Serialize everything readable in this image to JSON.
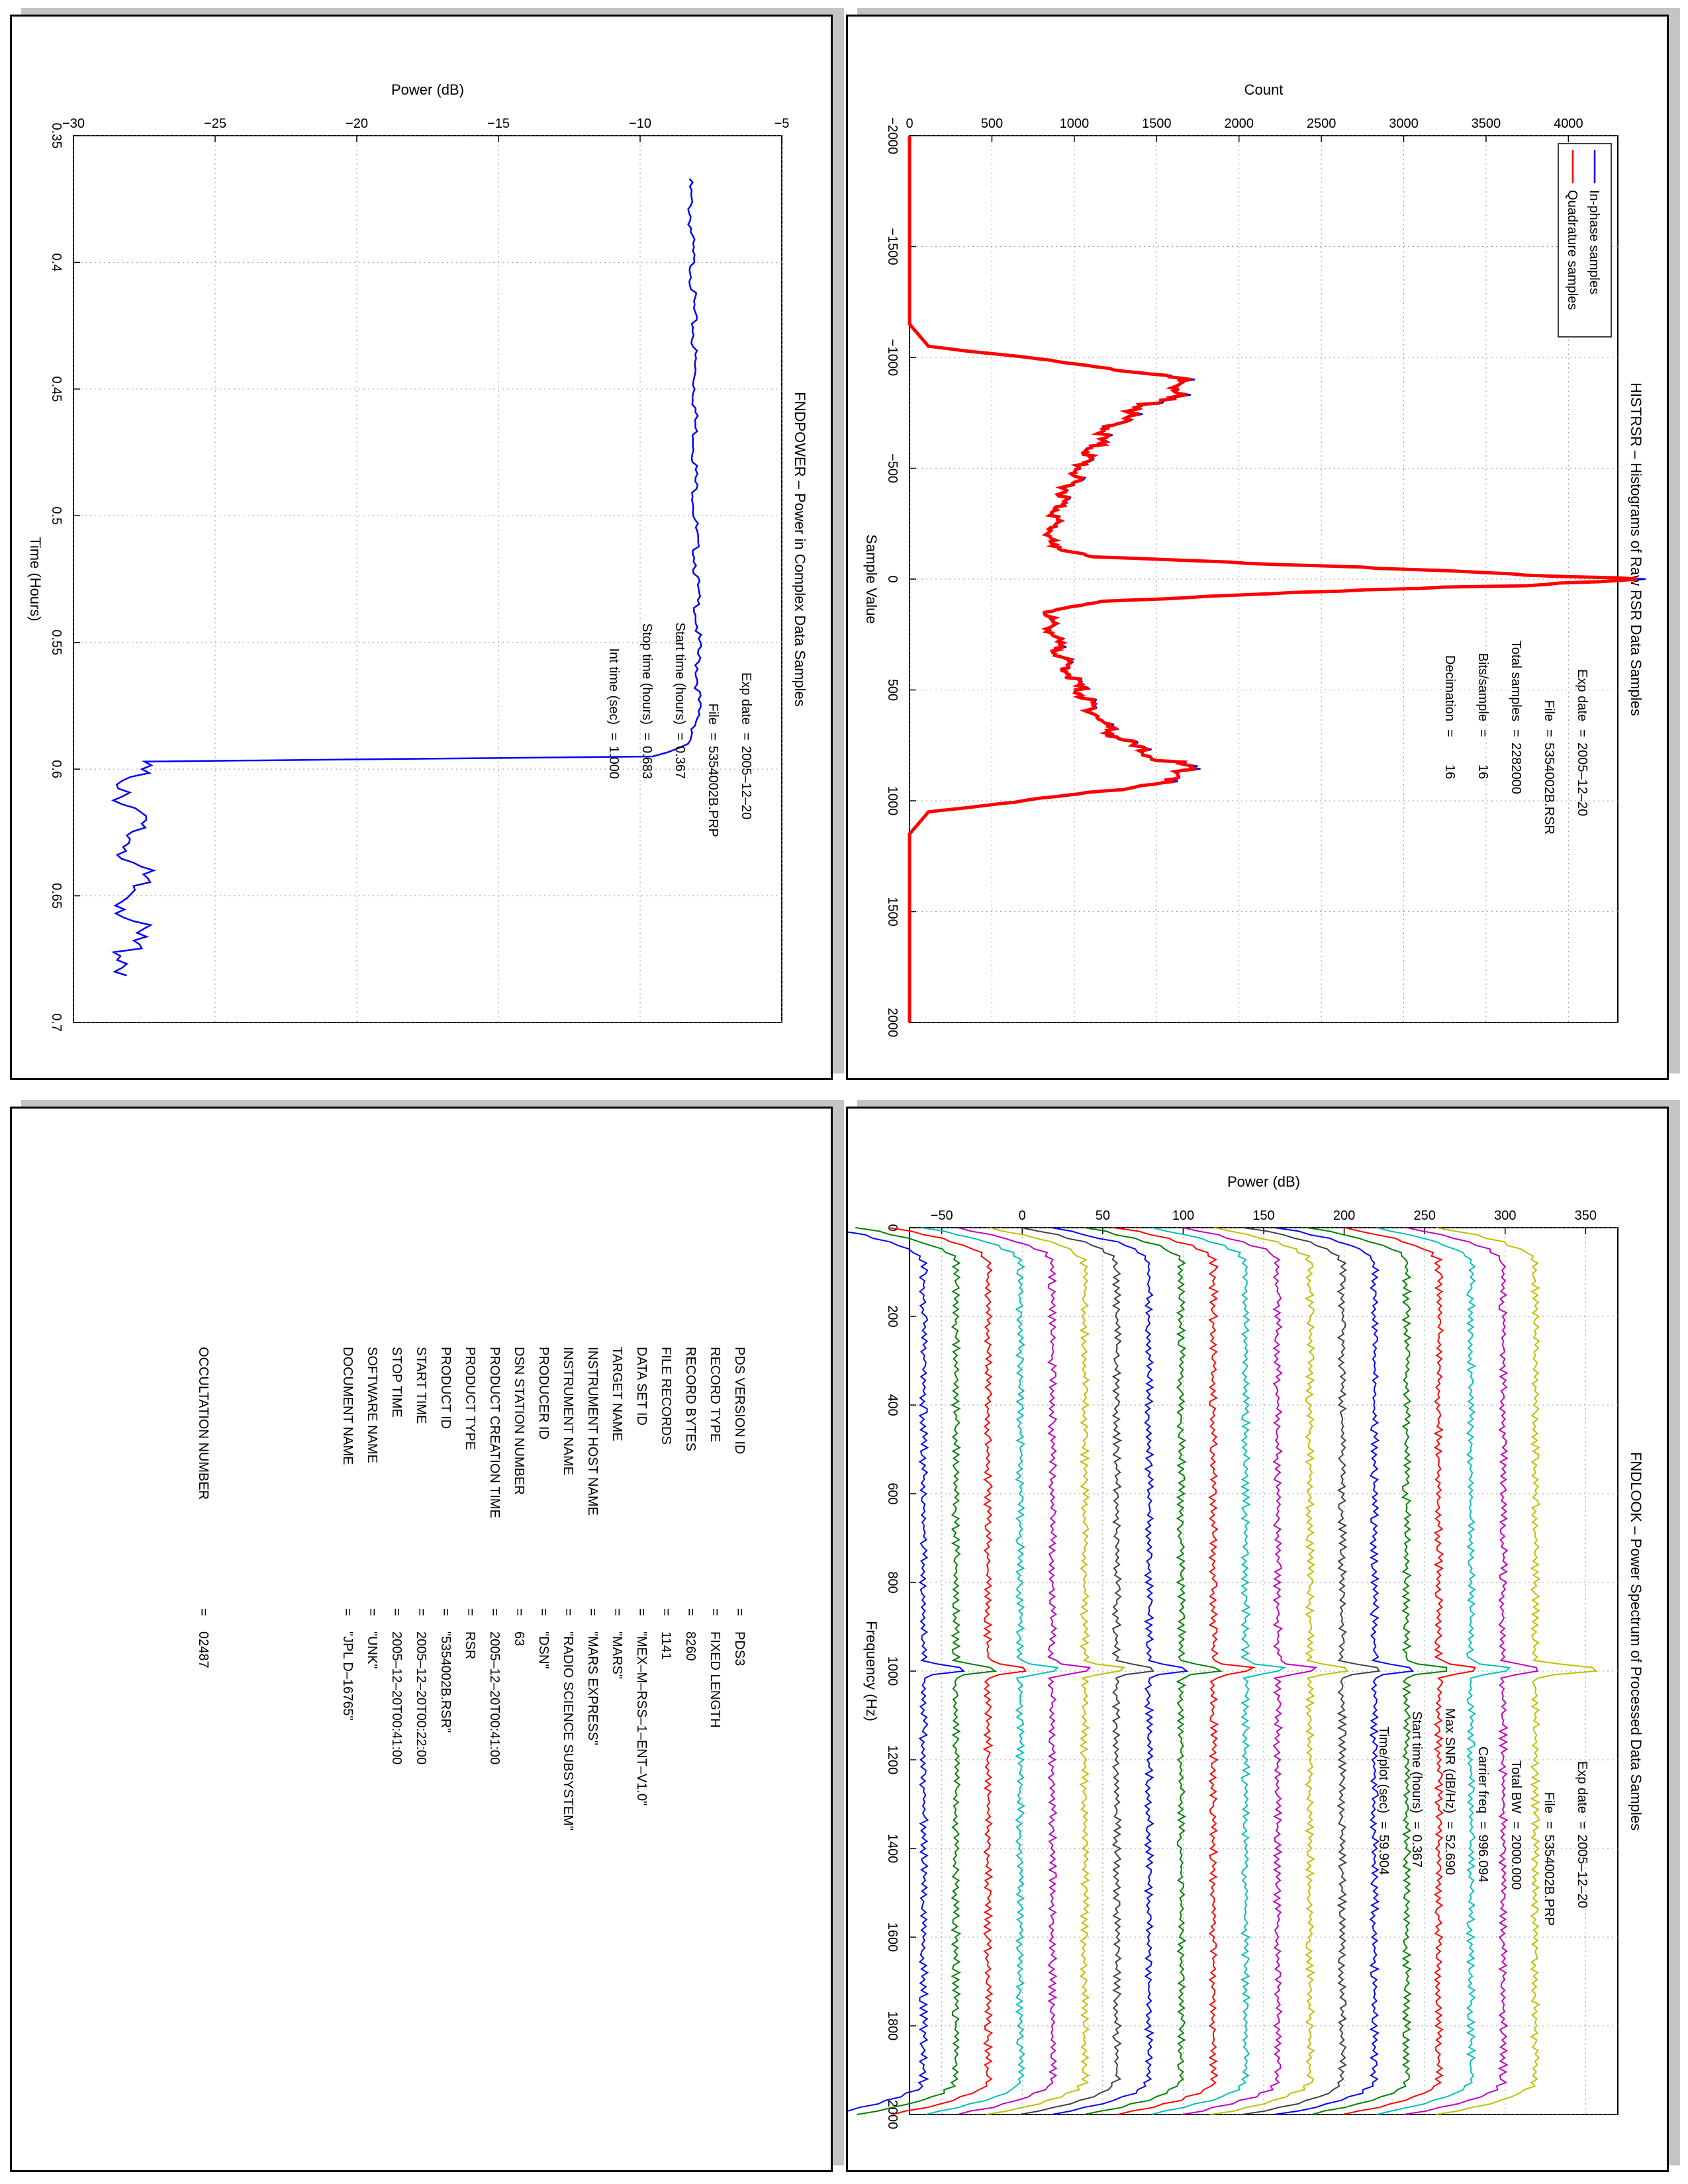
{
  "panels": {
    "histrsr": {
      "title": "HISTRSR – Histograms of Raw RSR Data Samples",
      "xlabel": "Sample Value",
      "ylabel": "Count",
      "legend": [
        "In-phase samples",
        "Quadrature samples"
      ],
      "info": [
        {
          "k": "Exp date",
          "v": "2005–12–20"
        },
        {
          "k": "File",
          "v": "5354002B.RSR"
        },
        {
          "k": "Total samples",
          "v": "2282000"
        },
        {
          "k": "Bits/sample",
          "v": "16"
        },
        {
          "k": "Decimation",
          "v": "16"
        }
      ]
    },
    "fndpower": {
      "title": "FNDPOWER – Power in Complex Data Samples",
      "xlabel": "Time (Hours)",
      "ylabel": "Power (dB)",
      "info": [
        {
          "k": "Exp date",
          "v": "2005–12–20"
        },
        {
          "k": "File",
          "v": "5354002B.PRP"
        },
        {
          "k": "Start time (hours)",
          "v": "0.367"
        },
        {
          "k": "Stop time (hours)",
          "v": "0.683"
        },
        {
          "k": "Int time (sec)",
          "v": "1.000"
        }
      ]
    },
    "fndlook": {
      "title": "FNDLOOK – Power Spectrum of Processed Data Samples",
      "xlabel": "Frequency (Hz)",
      "ylabel": "Power (dB)",
      "info": [
        {
          "k": "Exp date",
          "v": "2005–12–20"
        },
        {
          "k": "File",
          "v": "5354002B.PRP"
        },
        {
          "k": "Total BW",
          "v": "2000.000"
        },
        {
          "k": "Carrier freq",
          "v": "996.094"
        },
        {
          "k": "Max SNR (dB/Hz)",
          "v": "52.690"
        },
        {
          "k": "Start time (hours)",
          "v": "0.367"
        },
        {
          "k": "Time/plot (sec)",
          "v": "59.904"
        }
      ]
    },
    "label": {
      "rows": [
        {
          "k": "PDS VERSION ID",
          "v": "PDS3"
        },
        {
          "k": "RECORD TYPE",
          "v": "FIXED LENGTH"
        },
        {
          "k": "RECORD BYTES",
          "v": "8260"
        },
        {
          "k": "FILE RECORDS",
          "v": "1141"
        },
        {
          "k": "DATA SET ID",
          "v": "\"MEX–M–RSS–1–ENT–V1.0\""
        },
        {
          "k": "TARGET NAME",
          "v": "\"MARS\""
        },
        {
          "k": "INSTRUMENT HOST NAME",
          "v": "\"MARS EXPRESS\""
        },
        {
          "k": "INSTRUMENT NAME",
          "v": "\"RADIO SCIENCE SUBSYSTEM\""
        },
        {
          "k": "PRODUCER ID",
          "v": "\"DSN\""
        },
        {
          "k": "DSN STATION NUMBER",
          "v": "63"
        },
        {
          "k": "PRODUCT CREATION TIME",
          "v": "2005–12–20T00:41:00"
        },
        {
          "k": "PRODUCT TYPE",
          "v": "RSR"
        },
        {
          "k": "PRODUCT ID",
          "v": "\"5354002B.RSR\""
        },
        {
          "k": "START TIME",
          "v": "2005–12–20T00:22:00"
        },
        {
          "k": "STOP TIME",
          "v": "2005–12–20T00:41:00"
        },
        {
          "k": "SOFTWARE NAME",
          "v": "\"UNK\""
        },
        {
          "k": "DOCUMENT NAME",
          "v": "\"JPL D–16765\""
        }
      ],
      "occ_key": "OCCULTATION NUMBER",
      "occ_val": "02487"
    }
  },
  "chart_data": [
    {
      "type": "line",
      "title": "HISTRSR – Histograms of Raw RSR Data Samples",
      "xlabel": "Sample Value",
      "ylabel": "Count",
      "xlim": [
        -2000,
        2000
      ],
      "ylim": [
        0,
        4300
      ],
      "xticks": [
        -2000,
        -1500,
        -1000,
        -500,
        0,
        500,
        1000,
        1500,
        2000
      ],
      "yticks": [
        0,
        500,
        1000,
        1500,
        2000,
        2500,
        3000,
        3500,
        4000
      ],
      "grid": true,
      "legend_position": "top-left",
      "series": [
        {
          "name": "In-phase samples",
          "color": "#0000ff",
          "x": [
            -2000,
            -1150,
            -1050,
            -1000,
            -950,
            -900,
            -850,
            -800,
            -750,
            -700,
            -650,
            -600,
            -550,
            -500,
            -450,
            -400,
            -350,
            -300,
            -250,
            -200,
            -150,
            -100,
            -60,
            -30,
            0,
            30,
            60,
            100,
            150,
            200,
            250,
            300,
            350,
            400,
            450,
            500,
            550,
            600,
            650,
            700,
            750,
            800,
            850,
            900,
            950,
            1000,
            1050,
            1150,
            2000
          ],
          "y": [
            0,
            0,
            120,
            700,
            1250,
            1650,
            1680,
            1500,
            1350,
            1250,
            1180,
            1130,
            1080,
            1040,
            1000,
            960,
            930,
            900,
            880,
            860,
            850,
            1150,
            2400,
            3600,
            4300,
            3600,
            2400,
            1150,
            850,
            860,
            880,
            900,
            930,
            960,
            1000,
            1040,
            1080,
            1130,
            1180,
            1250,
            1350,
            1500,
            1680,
            1650,
            1250,
            700,
            120,
            0,
            0
          ]
        },
        {
          "name": "Quadrature samples",
          "color": "#ff0000",
          "x": [
            -2000,
            -1150,
            -1050,
            -1000,
            -950,
            -900,
            -850,
            -800,
            -750,
            -700,
            -650,
            -600,
            -550,
            -500,
            -450,
            -400,
            -350,
            -300,
            -250,
            -200,
            -150,
            -100,
            -60,
            -30,
            0,
            30,
            60,
            100,
            150,
            200,
            250,
            300,
            350,
            400,
            450,
            500,
            550,
            600,
            650,
            700,
            750,
            800,
            850,
            900,
            950,
            1000,
            1050,
            1150,
            2000
          ],
          "y": [
            0,
            0,
            115,
            690,
            1240,
            1640,
            1670,
            1490,
            1345,
            1245,
            1175,
            1125,
            1075,
            1035,
            995,
            955,
            925,
            895,
            875,
            855,
            845,
            1140,
            2390,
            3590,
            4280,
            3590,
            2390,
            1140,
            845,
            855,
            875,
            895,
            925,
            955,
            995,
            1035,
            1075,
            1125,
            1175,
            1245,
            1345,
            1490,
            1670,
            1640,
            1240,
            690,
            115,
            0,
            0
          ]
        }
      ]
    },
    {
      "type": "line",
      "title": "FNDPOWER – Power in Complex Data Samples",
      "xlabel": "Time (Hours)",
      "ylabel": "Power (dB)",
      "xlim": [
        0.35,
        0.7
      ],
      "ylim": [
        -30,
        -5
      ],
      "xticks": [
        0.35,
        0.4,
        0.45,
        0.5,
        0.55,
        0.6,
        0.65,
        0.7
      ],
      "yticks": [
        -30,
        -25,
        -20,
        -15,
        -10,
        -5
      ],
      "grid": true,
      "series": [
        {
          "name": "",
          "color": "#0000ff",
          "x": [
            0.367,
            0.4,
            0.45,
            0.5,
            0.55,
            0.58,
            0.59,
            0.595,
            0.597,
            0.6,
            0.62,
            0.64,
            0.66,
            0.683
          ],
          "y": [
            -8.2,
            -8.1,
            -8.0,
            -8.0,
            -7.9,
            -7.9,
            -8.2,
            -9.5,
            -27.2,
            -27.6,
            -27.6,
            -27.5,
            -27.6,
            -27.7
          ]
        }
      ]
    },
    {
      "type": "line",
      "title": "FNDLOOK – Power Spectrum of Processed Data Samples",
      "xlabel": "Frequency (Hz)",
      "ylabel": "Power (dB)",
      "xlim": [
        0,
        2000
      ],
      "ylim": [
        -70,
        370
      ],
      "xticks": [
        0,
        200,
        400,
        600,
        800,
        1000,
        1200,
        1400,
        1600,
        1800,
        2000
      ],
      "yticks": [
        -50,
        0,
        50,
        100,
        150,
        200,
        250,
        300,
        350
      ],
      "grid": true,
      "series_note": "20 stacked spectra offset by 20 dB each, carrier at 996 Hz",
      "offsets": [
        -60,
        -40,
        -20,
        0,
        20,
        40,
        60,
        80,
        100,
        120,
        140,
        160,
        180,
        200,
        220,
        240,
        260,
        280,
        300,
        320
      ],
      "colors": [
        "#0000ff",
        "#008000",
        "#ff0000",
        "#00bfbf",
        "#bf00bf",
        "#bfbf00",
        "#404040"
      ],
      "peak_frequency": 996
    }
  ]
}
